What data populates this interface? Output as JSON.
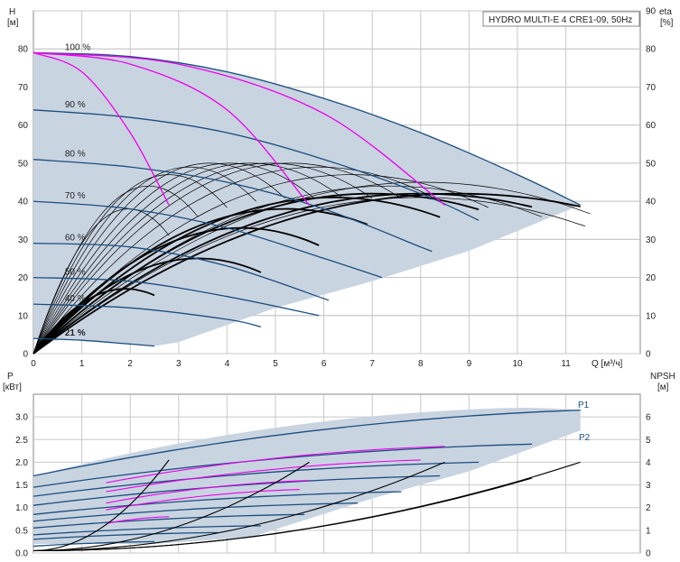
{
  "title": "HYDRO MULTI-E 4 CRE1-09, 50Hz",
  "colors": {
    "envelope": "#c9d4e1",
    "envelope_light": "#e4eef8",
    "curve_blue": "#1b4e7e",
    "curve_magenta": "#ee00ee",
    "curve_black": "#000000",
    "grid": "#c8c8c8"
  },
  "top_chart": {
    "y_left_label_1": "H",
    "y_left_label_2": "[м]",
    "y_right_label_1": "eta",
    "y_right_label_2": "[%]",
    "x_label": "Q [м³/ч]",
    "x_ticks": [
      "0",
      "1",
      "2",
      "3",
      "4",
      "5",
      "6",
      "7",
      "8",
      "9",
      "10",
      "11"
    ],
    "y_left_ticks": [
      "0",
      "10",
      "20",
      "30",
      "40",
      "50",
      "60",
      "70",
      "80"
    ],
    "y_right_ticks": [
      "0",
      "10",
      "20",
      "30",
      "40",
      "50",
      "60",
      "70",
      "80",
      "90"
    ],
    "speed_labels": [
      "100 %",
      "90 %",
      "80 %",
      "70 %",
      "60 %",
      "50 %",
      "40 %",
      "21 %"
    ]
  },
  "bottom_chart": {
    "y_left_label_1": "P",
    "y_left_label_2": "[кВт]",
    "y_right_label_1": "NPSH",
    "y_right_label_2": "[м]",
    "y_left_ticks": [
      "0.0",
      "0.5",
      "1.0",
      "1.5",
      "2.0",
      "2.5",
      "3.0"
    ],
    "y_right_ticks": [
      "0",
      "1",
      "2",
      "3",
      "4",
      "5",
      "6"
    ],
    "series_labels": [
      "P1",
      "P2"
    ]
  },
  "chart_data": [
    {
      "type": "line",
      "title": "HYDRO MULTI-E 4 CRE1-09, 50Hz",
      "xlabel": "Q [м³/ч]",
      "ylabel": "H [м]",
      "y2label": "eta [%]",
      "xlim": [
        0,
        12.3
      ],
      "ylim": [
        0,
        90
      ],
      "y2lim": [
        0,
        90
      ],
      "grid": true,
      "head_curves": [
        {
          "speed": "100 %",
          "x": [
            0,
            2,
            4,
            6,
            8,
            10,
            11.3
          ],
          "y": [
            79,
            78,
            74,
            67,
            58,
            47,
            39
          ]
        },
        {
          "speed": "90 %",
          "x": [
            0,
            2,
            4,
            6,
            8,
            9.2
          ],
          "y": [
            64,
            62,
            58,
            51,
            42,
            35
          ]
        },
        {
          "speed": "80 %",
          "x": [
            0,
            2,
            4,
            6,
            8,
            8.2
          ],
          "y": [
            51,
            49,
            45,
            38,
            28,
            27
          ]
        },
        {
          "speed": "70 %",
          "x": [
            0,
            2,
            4,
            6,
            7.2
          ],
          "y": [
            40,
            38,
            33,
            25,
            20
          ]
        },
        {
          "speed": "60 %",
          "x": [
            0,
            2,
            4,
            6.1
          ],
          "y": [
            29,
            28,
            23,
            14
          ]
        },
        {
          "speed": "50 %",
          "x": [
            0,
            2,
            4,
            5.9
          ],
          "y": [
            20,
            19,
            15,
            10
          ]
        },
        {
          "speed": "40 %",
          "x": [
            0,
            2,
            4,
            4.7
          ],
          "y": [
            13,
            12,
            9,
            7
          ]
        },
        {
          "speed": "21 %",
          "x": [
            0,
            1,
            2,
            2.5
          ],
          "y": [
            4,
            3.5,
            2.5,
            2
          ]
        }
      ],
      "efficiency_curve_max": {
        "x": [
          0,
          2,
          4,
          6,
          8,
          10,
          11.3
        ],
        "y": [
          0,
          27,
          37,
          41,
          43,
          42,
          39
        ]
      },
      "bep_parabolas": [
        {
          "x": [
            0,
            1,
            2,
            2.8
          ],
          "y": [
            79,
            74,
            58,
            39
          ]
        },
        {
          "x": [
            0,
            2,
            4,
            5.7
          ],
          "y": [
            79,
            76,
            64,
            39
          ]
        },
        {
          "x": [
            0,
            3,
            6,
            8.5
          ],
          "y": [
            79,
            76,
            63,
            39
          ]
        }
      ]
    },
    {
      "type": "line",
      "xlabel": "Q [м³/ч]",
      "ylabel": "P [кВт]",
      "y2label": "NPSH [м]",
      "xlim": [
        0,
        12.3
      ],
      "ylim": [
        0,
        3.5
      ],
      "y2lim": [
        0,
        7
      ],
      "grid": true,
      "series": [
        {
          "name": "P1",
          "x": [
            0,
            2,
            4,
            6,
            8,
            10,
            11.3
          ],
          "y": [
            1.7,
            2.2,
            2.6,
            2.9,
            3.1,
            3.2,
            3.15
          ]
        },
        {
          "name": "P2",
          "x": [
            0,
            2,
            4,
            6,
            8,
            10,
            11.3
          ],
          "y": [
            1.5,
            1.9,
            2.3,
            2.5,
            2.65,
            2.7,
            2.7
          ]
        },
        {
          "name": "NPSH",
          "x": [
            0,
            2,
            4,
            6,
            8,
            10,
            11.3
          ],
          "y": [
            0.0,
            0.1,
            0.4,
            0.9,
            1.7,
            2.8,
            3.9
          ]
        }
      ]
    }
  ]
}
